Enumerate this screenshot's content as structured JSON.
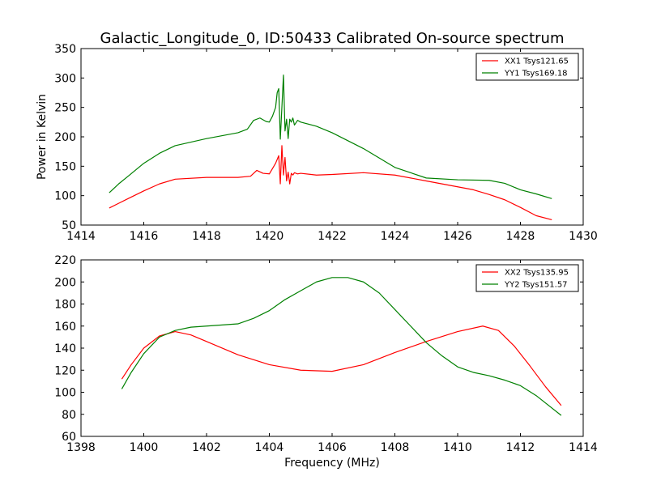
{
  "figure": {
    "background": "#ffffff",
    "title": "Galactic_Longitude_0, ID:50433 Calibrated On-source spectrum"
  },
  "chart_data": [
    {
      "type": "line",
      "title": "Galactic_Longitude_0, ID:50433 Calibrated On-source spectrum",
      "xlabel": "",
      "ylabel": "Power in Kelvin",
      "xlim": [
        1414,
        1430
      ],
      "ylim": [
        50,
        350
      ],
      "xticks": [
        1414,
        1416,
        1418,
        1420,
        1422,
        1424,
        1426,
        1428,
        1430
      ],
      "yticks": [
        50,
        100,
        150,
        200,
        250,
        300,
        350
      ],
      "grid": false,
      "legend_position": "top-right",
      "series": [
        {
          "name": "XX1 Tsys121.65",
          "color": "#ff0000",
          "x": [
            1414.9,
            1415.2,
            1415.5,
            1416.0,
            1416.5,
            1417.0,
            1418.0,
            1419.0,
            1419.4,
            1419.6,
            1419.8,
            1420.0,
            1420.2,
            1420.3,
            1420.35,
            1420.4,
            1420.45,
            1420.5,
            1420.55,
            1420.6,
            1420.65,
            1420.7,
            1420.75,
            1420.8,
            1420.9,
            1421.0,
            1421.5,
            1422.0,
            1423.0,
            1424.0,
            1425.0,
            1426.0,
            1426.5,
            1427.0,
            1427.5,
            1428.0,
            1428.5,
            1429.0
          ],
          "values": [
            79,
            87,
            95,
            108,
            120,
            128,
            131,
            131,
            133,
            143,
            138,
            137,
            155,
            168,
            120,
            185,
            135,
            165,
            125,
            140,
            120,
            138,
            135,
            139,
            137,
            138,
            135,
            136,
            139,
            135,
            125,
            115,
            110,
            102,
            93,
            80,
            66,
            59
          ]
        },
        {
          "name": "YY1 Tsys169.18",
          "color": "#008000",
          "x": [
            1414.9,
            1415.2,
            1415.5,
            1416.0,
            1416.5,
            1417.0,
            1418.0,
            1419.0,
            1419.3,
            1419.5,
            1419.7,
            1419.9,
            1420.0,
            1420.1,
            1420.2,
            1420.25,
            1420.3,
            1420.35,
            1420.4,
            1420.45,
            1420.5,
            1420.55,
            1420.6,
            1420.65,
            1420.7,
            1420.75,
            1420.8,
            1420.9,
            1421.0,
            1421.5,
            1422.0,
            1423.0,
            1424.0,
            1425.0,
            1426.0,
            1427.0,
            1427.5,
            1428.0,
            1428.5,
            1429.0
          ],
          "values": [
            105,
            120,
            133,
            155,
            172,
            185,
            197,
            207,
            213,
            228,
            232,
            226,
            225,
            235,
            250,
            275,
            282,
            196,
            250,
            305,
            210,
            230,
            197,
            230,
            225,
            232,
            220,
            228,
            225,
            218,
            207,
            180,
            148,
            130,
            127,
            126,
            121,
            110,
            103,
            95
          ]
        }
      ]
    },
    {
      "type": "line",
      "title": "",
      "xlabel": "Frequency (MHz)",
      "ylabel": "",
      "xlim": [
        1398,
        1414
      ],
      "ylim": [
        60,
        220
      ],
      "xticks": [
        1398,
        1400,
        1402,
        1404,
        1406,
        1408,
        1410,
        1412,
        1414
      ],
      "yticks": [
        60,
        80,
        100,
        120,
        140,
        160,
        180,
        200,
        220
      ],
      "grid": false,
      "legend_position": "top-right",
      "series": [
        {
          "name": "XX2 Tsys135.95",
          "color": "#ff0000",
          "x": [
            1399.3,
            1399.6,
            1400.0,
            1400.5,
            1401.0,
            1401.5,
            1402.0,
            1403.0,
            1404.0,
            1405.0,
            1406.0,
            1407.0,
            1408.0,
            1409.0,
            1410.0,
            1410.8,
            1411.3,
            1411.8,
            1412.3,
            1412.8,
            1413.3
          ],
          "values": [
            112,
            125,
            140,
            151,
            155,
            152,
            146,
            134,
            125,
            120,
            119,
            125,
            136,
            146,
            155,
            160,
            156,
            142,
            124,
            105,
            88
          ]
        },
        {
          "name": "YY2 Tsys151.57",
          "color": "#008000",
          "x": [
            1399.3,
            1399.6,
            1400.0,
            1400.5,
            1401.0,
            1401.5,
            1402.0,
            1403.0,
            1403.5,
            1404.0,
            1404.5,
            1405.0,
            1405.5,
            1406.0,
            1406.5,
            1407.0,
            1407.5,
            1408.0,
            1408.5,
            1409.0,
            1409.5,
            1410.0,
            1410.5,
            1411.0,
            1411.5,
            1412.0,
            1412.5,
            1413.3
          ],
          "values": [
            103,
            118,
            135,
            150,
            156,
            159,
            160,
            162,
            167,
            174,
            184,
            192,
            200,
            204,
            204,
            200,
            190,
            175,
            160,
            145,
            133,
            123,
            118,
            115,
            111,
            106,
            97,
            79
          ]
        }
      ]
    }
  ]
}
